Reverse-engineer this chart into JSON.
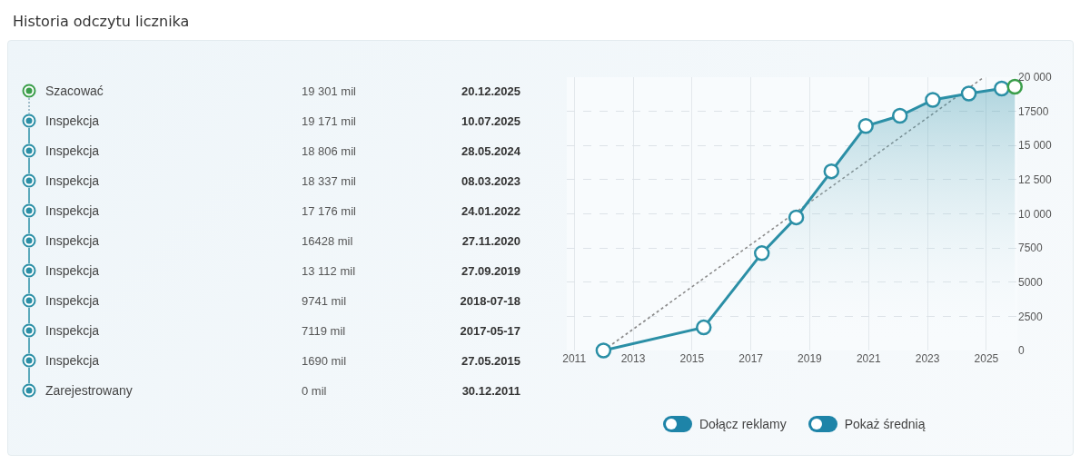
{
  "chart_data": [
    {
      "type": "other",
      "title": "Historia odczytu licznika",
      "annotations": [
        "Szacować",
        "19 301 mil",
        "20.12.2025",
        "Inspekcja",
        "19 171 mil",
        "10.07.2025",
        "Inspekcja",
        "18 806 mil",
        "28.05.2024",
        "Inspekcja",
        "18 337 mil",
        "08.03.2023",
        "Inspekcja",
        "17 176 mil",
        "24.01.2022",
        "Inspekcja",
        "16428 mil",
        "27.11.2020",
        "Inspekcja",
        "13 112 mil",
        "27.09.2019",
        "Inspekcja",
        "9741 mil",
        "2018-07-18",
        "Inspekcja",
        "7119 mil",
        "2017-05-17",
        "Inspekcja",
        "1690 mil",
        "27.05.2015",
        "Zarejestrowany",
        "0 mil",
        "30.12.2011"
      ]
    },
    {
      "type": "area",
      "x": [
        "2011-12-30",
        "2015-05-27",
        "2017-05-17",
        "2018-07-18",
        "2019-09-27",
        "2020-11-27",
        "2022-01-24",
        "2023-03-08",
        "2024-05-28",
        "2025-07-10",
        "2025-12-20"
      ],
      "series": [
        {
          "type": "line",
          "x": [
            "2011-12-30",
            "2024-12-01"
          ],
          "values": [
            0,
            20000
          ],
          "color": "#8a8a8a",
          "line_style": "dotted",
          "marker": "none"
        },
        {
          "type": "area",
          "color": "#2b8fa6",
          "colors": [
            "#2b8fa6",
            "#2b8fa6",
            "#2b8fa6",
            "#2b8fa6",
            "#2b8fa6",
            "#2b8fa6",
            "#2b8fa6",
            "#2b8fa6",
            "#2b8fa6",
            "#2b8fa6",
            "#3a9e4a"
          ],
          "values": [
            0,
            1690,
            7119,
            9741,
            13112,
            16428,
            17176,
            18337,
            18806,
            19171,
            19301
          ],
          "marker": "circle",
          "line_style": "solid"
        }
      ],
      "xlim": [
        "2010-10-01",
        "2026-01-20"
      ],
      "xticks": [
        {
          "value": "2011",
          "label": "2011"
        },
        {
          "value": "2013",
          "label": "2013"
        },
        {
          "value": "2015",
          "label": "2015"
        },
        {
          "value": "2017",
          "label": "2017"
        },
        {
          "value": "2019",
          "label": "2019"
        },
        {
          "value": "2021",
          "label": "2021"
        },
        {
          "value": "2023",
          "label": "2023"
        },
        {
          "value": "2025",
          "label": "2025"
        }
      ],
      "ylim": [
        0,
        20000
      ],
      "yticks": [
        0,
        2500,
        5000,
        7500,
        {
          "value": 10000,
          "label": "10 000"
        },
        {
          "value": 12500,
          "label": "12 500"
        },
        {
          "value": 15000,
          "label": "15 000"
        },
        17500,
        {
          "value": 20000,
          "label": "20 000"
        }
      ],
      "grid": true,
      "annotations": [
        "Dołącz reklamy",
        "Pokaż średnią"
      ]
    }
  ]
}
